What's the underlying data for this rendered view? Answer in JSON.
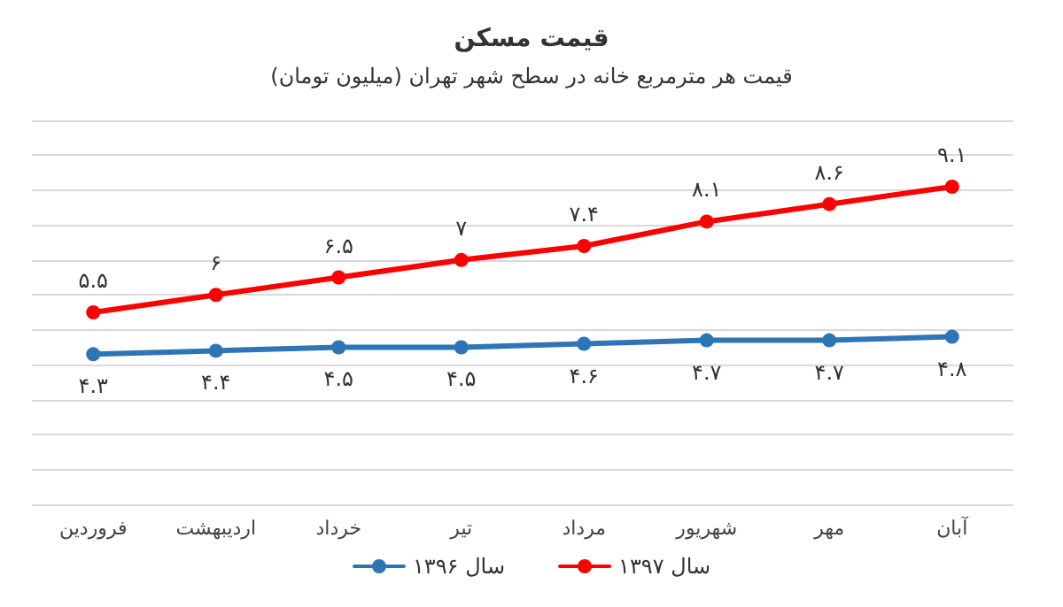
{
  "chart_data": {
    "type": "line",
    "title": "قیمت مسکن",
    "subtitle": "قیمت هر مترمربع خانه در سطح شهر تهران (میلیون تومان)",
    "categories": [
      "فروردین",
      "اردیبهشت",
      "خرداد",
      "تیر",
      "مرداد",
      "شهریور",
      "مهر",
      "آبان"
    ],
    "series": [
      {
        "name": "سال ۱۳۹۶",
        "color": "#2e75b6",
        "values": [
          4.3,
          4.4,
          4.5,
          4.5,
          4.6,
          4.7,
          4.7,
          4.8
        ],
        "value_labels": [
          "۴.۳",
          "۴.۴",
          "۴.۵",
          "۴.۵",
          "۴.۶",
          "۴.۷",
          "۴.۷",
          "۴.۸"
        ]
      },
      {
        "name": "سال ۱۳۹۷",
        "color": "#ff0000",
        "values": [
          5.5,
          6,
          6.5,
          7,
          7.4,
          8.1,
          8.6,
          9.1
        ],
        "value_labels": [
          "۵.۵",
          "۶",
          "۶.۵",
          "۷",
          "۷.۴",
          "۸.۱",
          "۸.۶",
          "۹.۱"
        ]
      }
    ],
    "ylim": [
      0,
      11
    ],
    "yticks": [
      0,
      1,
      2,
      3,
      4,
      5,
      6,
      7,
      8,
      9,
      10,
      11
    ],
    "tick_labels": "x",
    "grid": "y",
    "legend": "bottom",
    "marker": "circle",
    "line_style": "solid"
  }
}
